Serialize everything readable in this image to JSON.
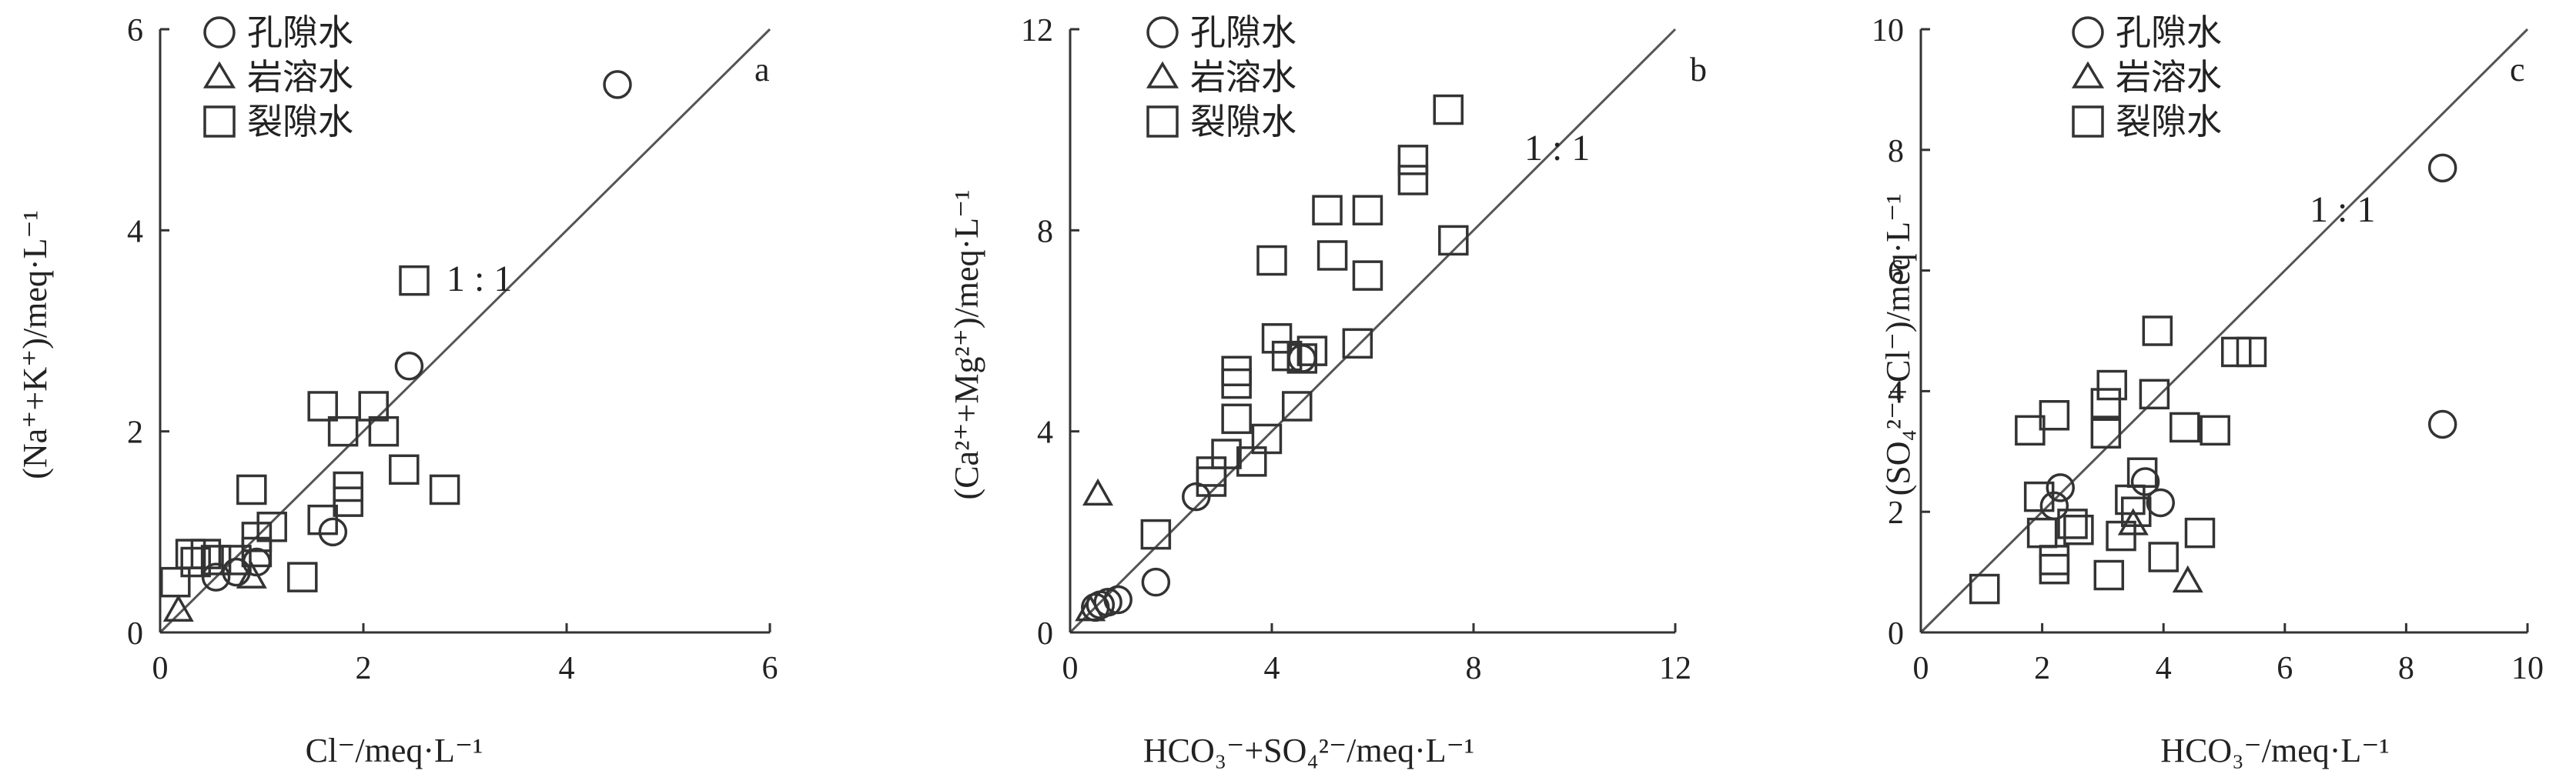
{
  "chart_data": [
    {
      "type": "scatter",
      "panel": "a",
      "xlabel": "Cl⁻/meq·L⁻¹",
      "ylabel": "(Na⁺+K⁺)/meq·L⁻¹",
      "xlim": [
        0,
        6
      ],
      "ylim": [
        0,
        6
      ],
      "xticks": [
        0,
        2,
        4,
        6
      ],
      "yticks": [
        0,
        2,
        4,
        6
      ],
      "reference_line": "1 : 1",
      "legend_placement": "top-left",
      "series": [
        {
          "name": "孔隙水",
          "marker": "circle",
          "points": [
            [
              4.5,
              5.45
            ],
            [
              2.45,
              2.65
            ],
            [
              1.7,
              1.0
            ],
            [
              0.55,
              0.55
            ],
            [
              0.75,
              0.6
            ],
            [
              0.95,
              0.7
            ]
          ]
        },
        {
          "name": "岩溶水",
          "marker": "triangle",
          "points": [
            [
              0.18,
              0.22
            ],
            [
              0.9,
              0.55
            ]
          ]
        },
        {
          "name": "裂隙水",
          "marker": "square",
          "points": [
            [
              2.5,
              3.5
            ],
            [
              1.6,
              2.25
            ],
            [
              2.1,
              2.25
            ],
            [
              1.8,
              2.0
            ],
            [
              2.2,
              2.0
            ],
            [
              2.4,
              1.62
            ],
            [
              1.85,
              1.45
            ],
            [
              1.85,
              1.3
            ],
            [
              2.8,
              1.42
            ],
            [
              1.6,
              1.12
            ],
            [
              0.9,
              1.42
            ],
            [
              1.1,
              1.05
            ],
            [
              0.95,
              0.95
            ],
            [
              0.95,
              0.8
            ],
            [
              0.3,
              0.78
            ],
            [
              0.45,
              0.78
            ],
            [
              0.35,
              0.7
            ],
            [
              0.55,
              0.72
            ],
            [
              0.75,
              0.72
            ],
            [
              0.15,
              0.5
            ],
            [
              1.4,
              0.55
            ]
          ]
        }
      ]
    },
    {
      "type": "scatter",
      "panel": "b",
      "xlabel": "HCO₃⁻+SO₄²⁻/meq·L⁻¹",
      "ylabel": "(Ca²⁺+Mg²⁺)/meq·L⁻¹",
      "xlim": [
        0,
        12
      ],
      "ylim": [
        0,
        12
      ],
      "xticks": [
        0,
        4,
        8,
        12
      ],
      "yticks": [
        0,
        4,
        8,
        12
      ],
      "reference_line": "1 : 1",
      "legend_placement": "top-left",
      "series": [
        {
          "name": "孔隙水",
          "marker": "circle",
          "points": [
            [
              4.6,
              5.45
            ],
            [
              2.5,
              2.7
            ],
            [
              1.7,
              1.0
            ],
            [
              0.6,
              0.55
            ],
            [
              0.75,
              0.6
            ],
            [
              0.95,
              0.65
            ],
            [
              0.5,
              0.5
            ]
          ]
        },
        {
          "name": "岩溶水",
          "marker": "triangle",
          "points": [
            [
              0.55,
              2.75
            ],
            [
              0.4,
              0.45
            ]
          ]
        },
        {
          "name": "裂隙水",
          "marker": "square",
          "points": [
            [
              7.5,
              10.4
            ],
            [
              6.8,
              9.4
            ],
            [
              6.8,
              9.0
            ],
            [
              5.1,
              8.4
            ],
            [
              5.9,
              8.4
            ],
            [
              4.0,
              7.4
            ],
            [
              5.2,
              7.5
            ],
            [
              5.9,
              7.1
            ],
            [
              7.6,
              7.8
            ],
            [
              3.3,
              5.2
            ],
            [
              3.3,
              4.95
            ],
            [
              4.1,
              5.85
            ],
            [
              4.3,
              5.5
            ],
            [
              4.8,
              5.6
            ],
            [
              4.6,
              5.45
            ],
            [
              5.7,
              5.75
            ],
            [
              3.3,
              4.25
            ],
            [
              4.5,
              4.5
            ],
            [
              3.9,
              3.85
            ],
            [
              3.1,
              3.55
            ],
            [
              3.6,
              3.4
            ],
            [
              2.8,
              3.2
            ],
            [
              2.8,
              3.0
            ],
            [
              1.7,
              1.95
            ]
          ]
        }
      ]
    },
    {
      "type": "scatter",
      "panel": "c",
      "xlabel": "HCO₃⁻/meq·L⁻¹",
      "ylabel": "(SO₄²⁻+Cl⁻)/meq·L⁻¹",
      "xlim": [
        0,
        10
      ],
      "ylim": [
        0,
        10
      ],
      "xticks": [
        0,
        2,
        4,
        6,
        8,
        10
      ],
      "yticks": [
        0,
        2,
        4,
        6,
        8,
        10
      ],
      "reference_line": "1 : 1",
      "legend_placement": "top-left",
      "series": [
        {
          "name": "孔隙水",
          "marker": "circle",
          "points": [
            [
              8.6,
              7.7
            ],
            [
              8.6,
              3.45
            ],
            [
              3.7,
              2.5
            ],
            [
              2.3,
              2.4
            ],
            [
              2.2,
              2.1
            ],
            [
              3.95,
              2.15
            ]
          ]
        },
        {
          "name": "岩溶水",
          "marker": "triangle",
          "points": [
            [
              3.5,
              1.8
            ],
            [
              4.4,
              0.85
            ]
          ]
        },
        {
          "name": "裂隙水",
          "marker": "square",
          "points": [
            [
              3.9,
              5.0
            ],
            [
              5.2,
              4.65
            ],
            [
              5.45,
              4.65
            ],
            [
              3.15,
              4.1
            ],
            [
              3.85,
              3.95
            ],
            [
              3.05,
              3.8
            ],
            [
              2.2,
              3.6
            ],
            [
              3.05,
              3.3
            ],
            [
              1.8,
              3.35
            ],
            [
              4.35,
              3.4
            ],
            [
              4.85,
              3.35
            ],
            [
              3.65,
              2.65
            ],
            [
              1.95,
              2.25
            ],
            [
              3.45,
              2.2
            ],
            [
              3.55,
              2.0
            ],
            [
              2.5,
              1.8
            ],
            [
              2.0,
              1.65
            ],
            [
              2.6,
              1.7
            ],
            [
              4.6,
              1.65
            ],
            [
              3.3,
              1.6
            ],
            [
              4.0,
              1.25
            ],
            [
              2.2,
              1.2
            ],
            [
              2.2,
              1.05
            ],
            [
              3.1,
              0.95
            ],
            [
              1.05,
              0.72
            ]
          ]
        }
      ]
    }
  ]
}
